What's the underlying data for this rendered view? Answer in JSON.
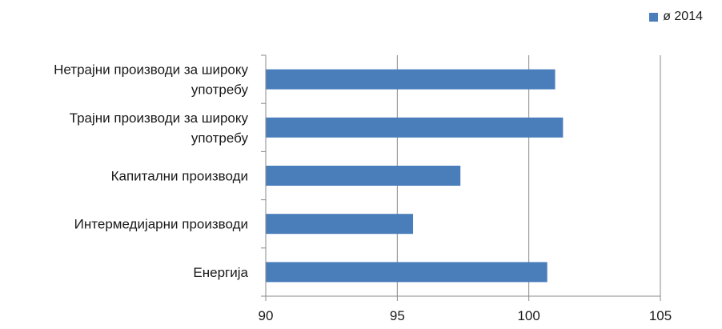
{
  "chart_data": {
    "type": "bar",
    "orientation": "horizontal",
    "categories": [
      [
        "Енергија"
      ],
      [
        "Интермедијарни производи"
      ],
      [
        "Капитални производи"
      ],
      [
        "Трајни производи за широку",
        "употребу"
      ],
      [
        "Нетрајни производи за широку",
        "употребу"
      ]
    ],
    "series": [
      {
        "name": "ø 2014",
        "values": [
          100.7,
          95.6,
          97.4,
          101.3,
          101.0
        ]
      }
    ],
    "xlim": [
      90,
      105
    ],
    "xticks": [
      "90",
      "95",
      "100",
      "105"
    ],
    "grid": true,
    "legend": "top-right",
    "bar_color": "#4a7ebb",
    "grid_color": "#888888",
    "axis_color": "#888888"
  }
}
